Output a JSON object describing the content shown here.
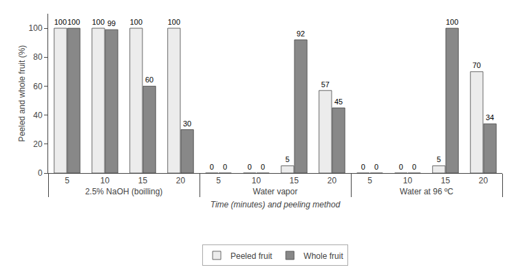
{
  "chart_data": {
    "type": "bar",
    "xlabel": "Time (minutes) and peeling method",
    "ylabel": "Peeled and whole fruit (%)",
    "categories": [
      [
        "2.5% NaOH (boilling)",
        "5"
      ],
      [
        "2.5% NaOH (boilling)",
        "10"
      ],
      [
        "2.5% NaOH (boilling)",
        "15"
      ],
      [
        "2.5% NaOH (boilling)",
        "20"
      ],
      [
        "Water vapor",
        "5"
      ],
      [
        "Water vapor",
        "10"
      ],
      [
        "Water vapor",
        "15"
      ],
      [
        "Water vapor",
        "20"
      ],
      [
        "Water at 96 ºC",
        "5"
      ],
      [
        "Water at 96 ºC",
        "10"
      ],
      [
        "Water at 96 ºC",
        "15"
      ],
      [
        "Water at 96 ºC",
        "20"
      ]
    ],
    "series": [
      {
        "name": "Peeled fruit",
        "color": "#ececec",
        "values": [
          100,
          100,
          100,
          100,
          0,
          0,
          5,
          57,
          0,
          0,
          5,
          70
        ]
      },
      {
        "name": "Whole fruit",
        "color": "#888888",
        "values": [
          100,
          99,
          60,
          30,
          0,
          0,
          92,
          45,
          0,
          0,
          100,
          34
        ]
      }
    ],
    "ylim": [
      0,
      110
    ],
    "yticks": [
      0,
      20,
      40,
      60,
      80,
      100
    ],
    "data_labels": true,
    "grid": false,
    "legend": "bottom"
  }
}
